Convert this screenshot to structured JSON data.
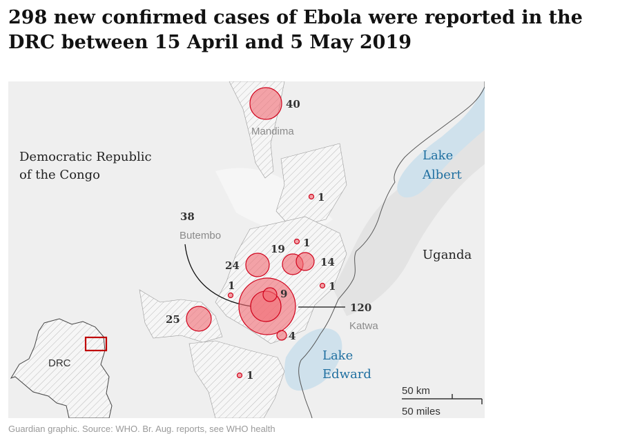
{
  "title": "298 new confirmed cases of Ebola were reported in the DRC between 15 April and 5 May 2019",
  "colors": {
    "bubble_fill": "#f26b73",
    "bubble_stroke": "#d0021b",
    "lake": "#cfe1ec",
    "land": "#efefef",
    "inset_frame": "#c00000"
  },
  "labels": {
    "country_drc": [
      "Democratic Republic",
      "of the Congo"
    ],
    "country_uganda": "Uganda",
    "lake_albert": [
      "Lake",
      "Albert"
    ],
    "lake_edward": [
      "Lake",
      "Edward"
    ],
    "inset_label": "DRC",
    "place_mandima": "Mandima",
    "place_butembo": "Butembo",
    "place_katwa": "Katwa"
  },
  "cases": [
    {
      "id": "mandima",
      "value": "40"
    },
    {
      "id": "north",
      "value": "1"
    },
    {
      "id": "b19",
      "value": "19"
    },
    {
      "id": "b1a",
      "value": "1"
    },
    {
      "id": "b24",
      "value": "24"
    },
    {
      "id": "b14",
      "value": "14"
    },
    {
      "id": "butembo",
      "value": "38"
    },
    {
      "id": "b1b",
      "value": "1"
    },
    {
      "id": "b1c",
      "value": "1"
    },
    {
      "id": "b9",
      "value": "9"
    },
    {
      "id": "katwa",
      "value": "120"
    },
    {
      "id": "b25",
      "value": "25"
    },
    {
      "id": "b4",
      "value": "4"
    },
    {
      "id": "south",
      "value": "1"
    }
  ],
  "scale": {
    "km": "50 km",
    "miles": "50 miles"
  },
  "footer": "Guardian graphic. Source: WHO. Br. Aug. reports, see WHO health"
}
